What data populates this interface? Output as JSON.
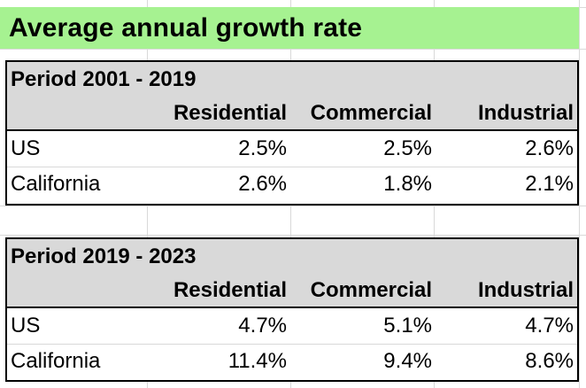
{
  "title": "Average annual growth rate",
  "colors": {
    "title_band": "#a6f291",
    "header_band": "#d9d9d9",
    "border": "#000000",
    "gridline": "#d9d9d9"
  },
  "tables": [
    {
      "period": "Period 2001 - 2019",
      "columns": [
        "Residential",
        "Commercial",
        "Industrial"
      ],
      "rows": [
        {
          "label": "US",
          "values": [
            "2.5%",
            "2.5%",
            "2.6%"
          ]
        },
        {
          "label": "California",
          "values": [
            "2.6%",
            "1.8%",
            "2.1%"
          ]
        }
      ]
    },
    {
      "period": "Period 2019 - 2023",
      "columns": [
        "Residential",
        "Commercial",
        "Industrial"
      ],
      "rows": [
        {
          "label": "US",
          "values": [
            "4.7%",
            "5.1%",
            "4.7%"
          ]
        },
        {
          "label": "California",
          "values": [
            "11.4%",
            "9.4%",
            "8.6%"
          ]
        }
      ]
    }
  ]
}
